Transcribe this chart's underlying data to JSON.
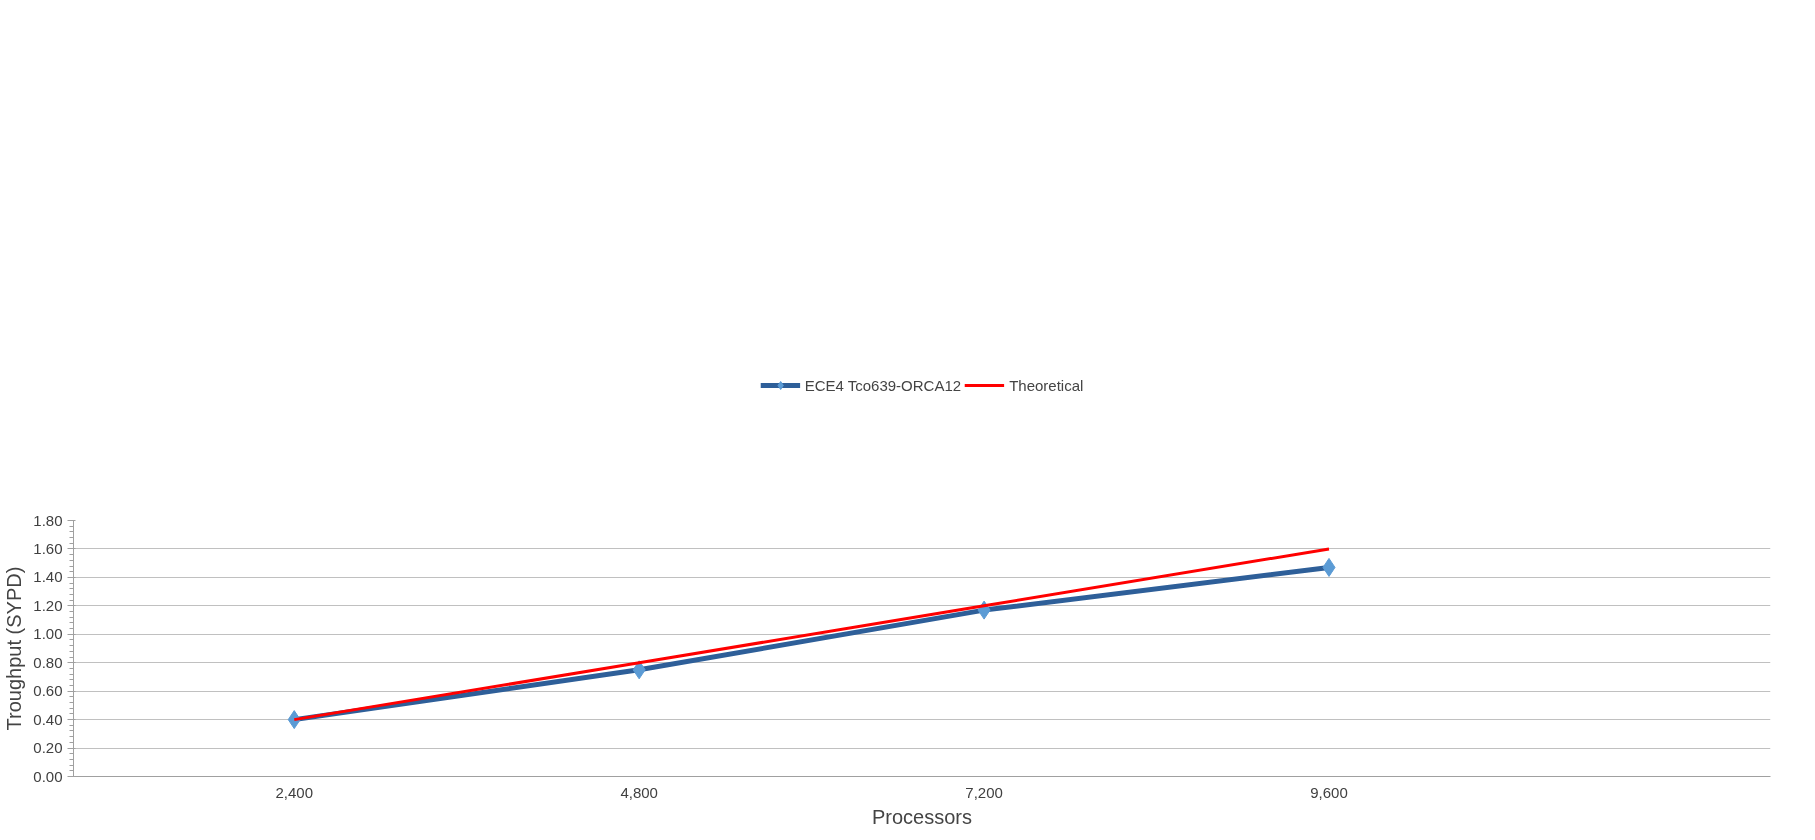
{
  "chart_data": {
    "type": "line",
    "xlabel": "Processors",
    "ylabel": "Troughput (SYPD)",
    "categories": [
      "2,400",
      "4,800",
      "7,200",
      "9,600"
    ],
    "series": [
      {
        "name": "ECE4 Tco639-ORCA12",
        "color": "#2e5f99",
        "marker": "diamond",
        "values": [
          0.4,
          0.75,
          1.17,
          1.47
        ]
      },
      {
        "name": "Theoretical",
        "color": "#ff0000",
        "marker": "none",
        "values": [
          0.4,
          0.8,
          1.2,
          1.6
        ]
      }
    ],
    "ylim": [
      0,
      1.8
    ],
    "yticks": [
      {
        "value": 0,
        "label": "0.00"
      },
      {
        "value": 0.2,
        "label": "0.20"
      },
      {
        "value": 0.4,
        "label": "0.40"
      },
      {
        "value": 0.6,
        "label": "0.60"
      },
      {
        "value": 0.8,
        "label": "0.80"
      },
      {
        "value": 1.0,
        "label": "1.00"
      },
      {
        "value": 1.2,
        "label": "1.20"
      },
      {
        "value": 1.4,
        "label": "1.40"
      },
      {
        "value": 1.6,
        "label": "1.60"
      },
      {
        "value": 1.8,
        "label": "1.80"
      }
    ],
    "grid": "y",
    "legend": "top"
  }
}
